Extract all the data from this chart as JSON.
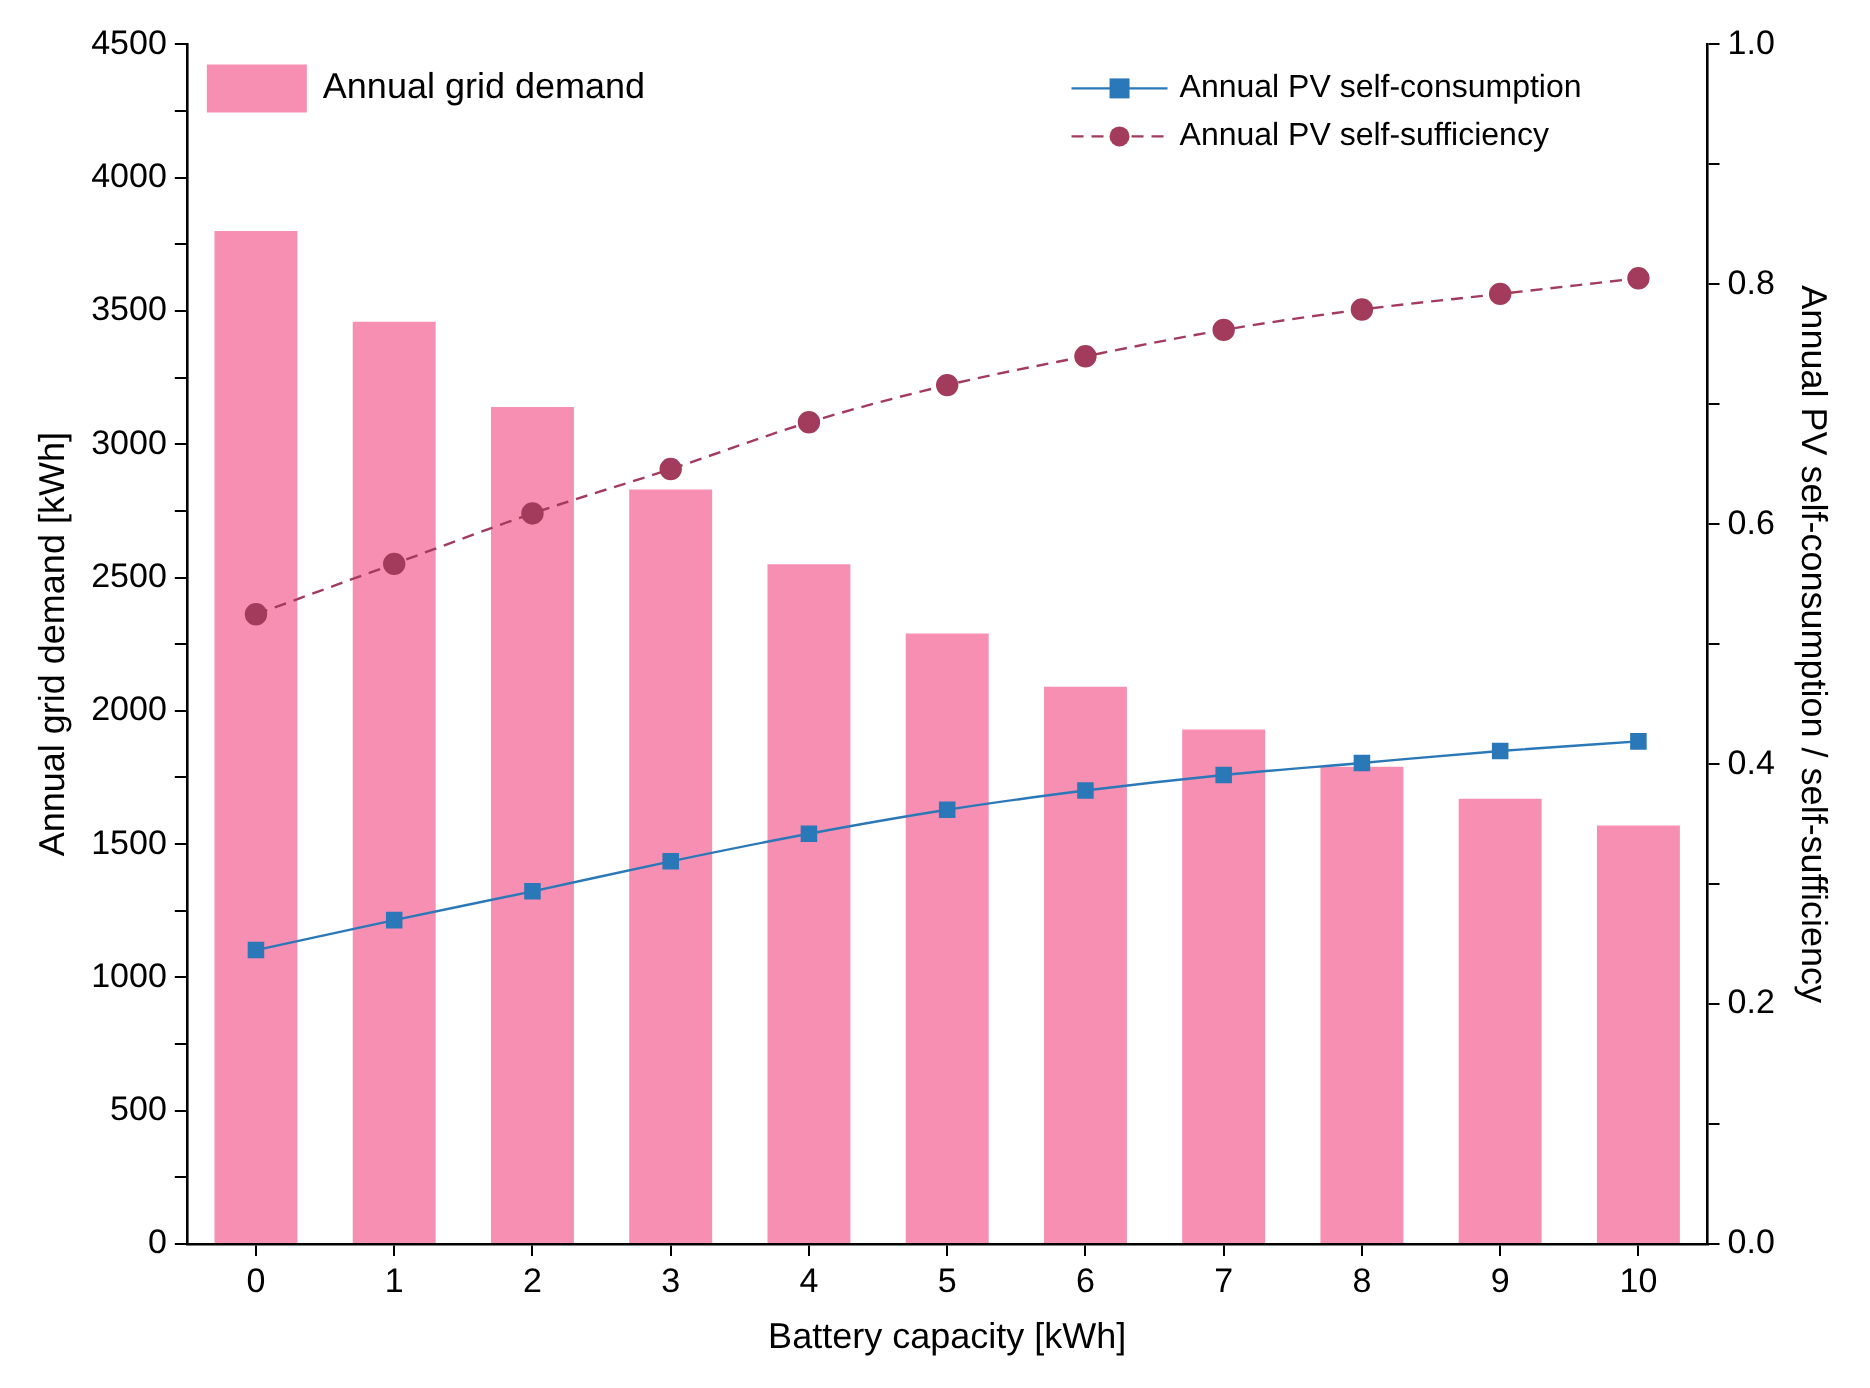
{
  "chart_data": {
    "type": "bar",
    "xlabel": "Battery capacity [kWh]",
    "ylabel": "Annual grid demand [kWh]",
    "y2label": "Annual PV self-consumption / self-sufficiency",
    "categories": [
      "0",
      "1",
      "2",
      "3",
      "4",
      "5",
      "6",
      "7",
      "8",
      "9",
      "10"
    ],
    "series": [
      {
        "name": "Annual grid demand",
        "color": "#f78fb3",
        "values": [
          3800,
          3460,
          3140,
          2830,
          2550,
          2290,
          2090,
          1930,
          1790,
          1670,
          1570
        ]
      },
      {
        "name": "Annual PV self-consumption",
        "type": "line",
        "axis": "y2",
        "color": "#2a78b8",
        "marker": "square",
        "line_style": "solid",
        "values": [
          0.245,
          0.27,
          0.294,
          0.319,
          0.342,
          0.362,
          0.378,
          0.391,
          0.401,
          0.411,
          0.419
        ]
      },
      {
        "name": "Annual PV self-sufficiency",
        "type": "line",
        "axis": "y2",
        "color": "#a23b5c",
        "marker": "circle",
        "line_style": "dashed",
        "values": [
          0.525,
          0.567,
          0.609,
          0.646,
          0.685,
          0.716,
          0.74,
          0.762,
          0.779,
          0.792,
          0.805
        ]
      }
    ],
    "ylim": [
      0,
      4500
    ],
    "yticks": [
      0,
      {
        "value": 250,
        "label": null
      },
      500,
      {
        "value": 750,
        "label": null
      },
      1000,
      {
        "value": 1250,
        "label": null
      },
      1500,
      {
        "value": 1750,
        "label": null
      },
      2000,
      {
        "value": 2250,
        "label": null
      },
      2500,
      {
        "value": 2750,
        "label": null
      },
      3000,
      {
        "value": 3250,
        "label": null
      },
      3500,
      {
        "value": 3750,
        "label": null
      },
      4000,
      {
        "value": 4250,
        "label": null
      },
      4500
    ],
    "y2lim": [
      0,
      1
    ],
    "y2ticks": [
      {
        "value": 0,
        "label": "0.0"
      },
      {
        "value": 0.1,
        "label": null
      },
      0.2,
      {
        "value": 0.3,
        "label": null
      },
      0.4,
      {
        "value": 0.5,
        "label": null
      },
      0.6,
      {
        "value": 0.7,
        "label": null
      },
      0.8,
      {
        "value": 0.9,
        "label": null
      },
      {
        "value": 1,
        "label": "1.0"
      }
    ],
    "grid": false,
    "legend": "top"
  }
}
